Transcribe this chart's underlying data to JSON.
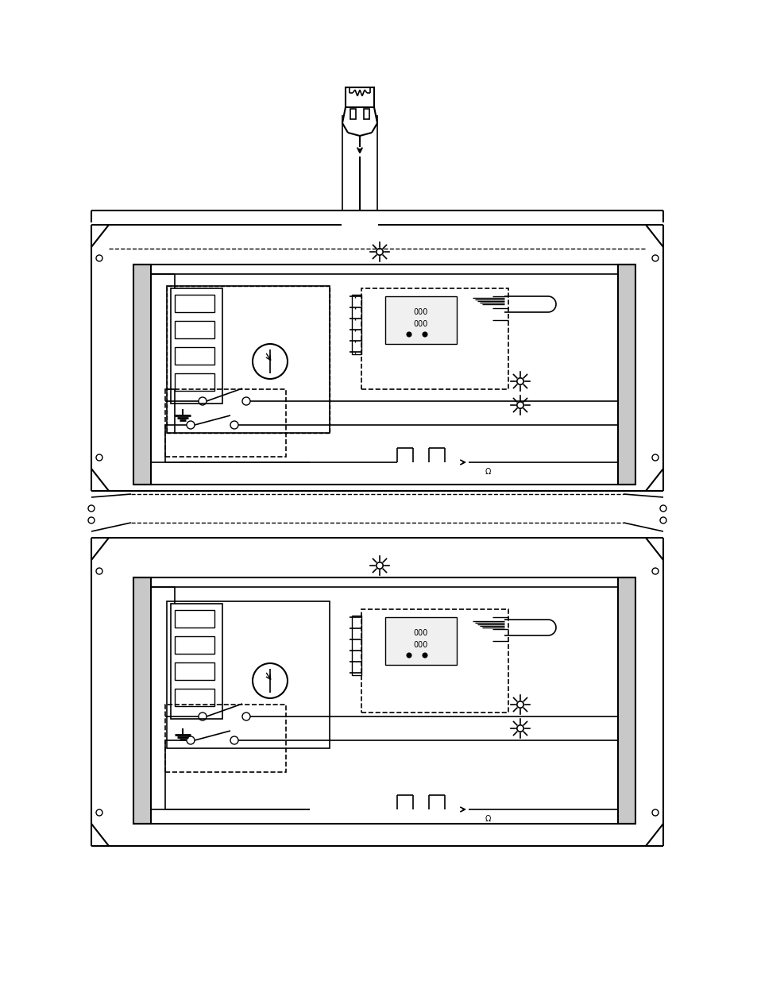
{
  "bg_color": "#ffffff",
  "line_color": "#000000",
  "figsize": [
    9.54,
    12.35
  ],
  "dpi": 100
}
